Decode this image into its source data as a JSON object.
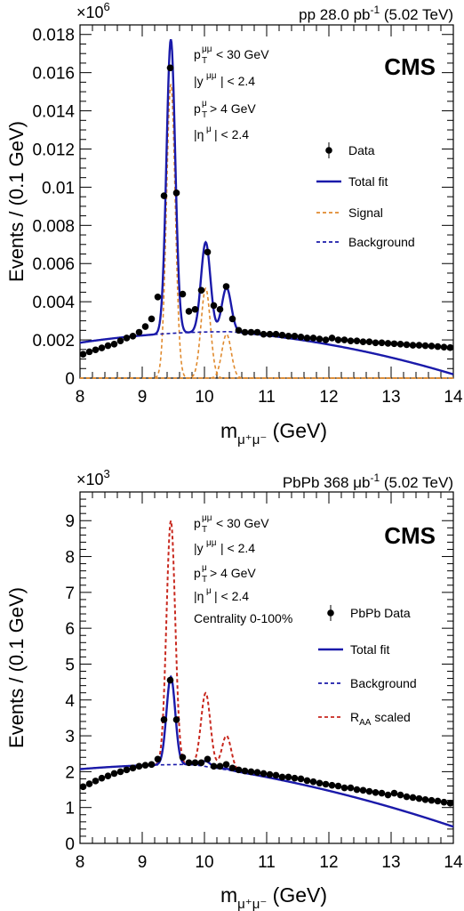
{
  "chart_data": [
    {
      "type": "scatter",
      "exponent_label": "×10",
      "exponent_power": "6",
      "multiplier": 1000000,
      "header_prefix": "pp 28.0 pb",
      "header_power": "-1",
      "header_suffix": "(5.02 TeV)",
      "cms_label": "CMS",
      "ylabel": "Events / (0.1 GeV)",
      "xlabel_main": "m",
      "xlabel_sub": "μ⁺μ⁻",
      "xlabel_unit": "(GeV)",
      "xlim": [
        8,
        14
      ],
      "ylim": [
        0,
        0.0185
      ],
      "x_ticks": [
        "8",
        "9",
        "10",
        "11",
        "12",
        "13",
        "14"
      ],
      "y_ticks": [
        {
          "v": 0,
          "label": "0"
        },
        {
          "v": 0.002,
          "label": "0.002"
        },
        {
          "v": 0.004,
          "label": "0.004"
        },
        {
          "v": 0.006,
          "label": "0.006"
        },
        {
          "v": 0.008,
          "label": "0.008"
        },
        {
          "v": 0.01,
          "label": "0.01"
        },
        {
          "v": 0.012,
          "label": "0.012"
        },
        {
          "v": 0.014,
          "label": "0.014"
        },
        {
          "v": 0.016,
          "label": "0.016"
        },
        {
          "v": 0.018,
          "label": "0.018"
        }
      ],
      "y_minor": 0.0005,
      "cuts": [
        {
          "sym": "p",
          "sup": "μμ",
          "sub": "T",
          "rest": " < 30 GeV"
        },
        {
          "sym": "|y",
          "sup": "μμ",
          "sub": "",
          "rest": "| < 2.4"
        },
        {
          "sym": "p",
          "sup": "μ",
          "sub": "T",
          "rest": " > 4 GeV"
        },
        {
          "sym": "|η",
          "sup": "μ",
          "sub": "",
          "rest": "| < 2.4"
        }
      ],
      "legend": [
        {
          "label": "Data",
          "style": "marker",
          "color": "#000000"
        },
        {
          "label": "Total fit",
          "style": "solid",
          "color": "#1a1aaa"
        },
        {
          "label": "Signal",
          "style": "dash",
          "color": "#e08a2e"
        },
        {
          "label": "Background",
          "style": "dash",
          "color": "#1a1aaa"
        }
      ],
      "background": {
        "a": 0.00243,
        "c": 10.4,
        "k": 0.0001,
        "r": 0.00026
      },
      "peaks": [
        {
          "mass": 9.46,
          "amp": 0.0154,
          "sigma": 0.07
        },
        {
          "mass": 10.02,
          "amp": 0.0047,
          "sigma": 0.075
        },
        {
          "mass": 10.355,
          "amp": 0.0023,
          "sigma": 0.075
        }
      ],
      "data_points": [
        [
          8.05,
          0.00125
        ],
        [
          8.15,
          0.00138
        ],
        [
          8.25,
          0.00148
        ],
        [
          8.35,
          0.00158
        ],
        [
          8.45,
          0.0017
        ],
        [
          8.55,
          0.00178
        ],
        [
          8.65,
          0.00195
        ],
        [
          8.75,
          0.0021
        ],
        [
          8.85,
          0.0022
        ],
        [
          8.95,
          0.0024
        ],
        [
          9.05,
          0.0027
        ],
        [
          9.15,
          0.0031
        ],
        [
          9.25,
          0.00425
        ],
        [
          9.35,
          0.00955
        ],
        [
          9.45,
          0.01625
        ],
        [
          9.55,
          0.0097
        ],
        [
          9.65,
          0.0044
        ],
        [
          9.75,
          0.0035
        ],
        [
          9.85,
          0.0036
        ],
        [
          9.95,
          0.0046
        ],
        [
          10.05,
          0.0066
        ],
        [
          10.15,
          0.0038
        ],
        [
          10.25,
          0.0036
        ],
        [
          10.35,
          0.0048
        ],
        [
          10.45,
          0.0031
        ],
        [
          10.55,
          0.0025
        ],
        [
          10.65,
          0.0024
        ],
        [
          10.75,
          0.0024
        ],
        [
          10.85,
          0.0024
        ],
        [
          10.95,
          0.0023
        ],
        [
          11.05,
          0.0023
        ],
        [
          11.15,
          0.0023
        ],
        [
          11.25,
          0.00225
        ],
        [
          11.35,
          0.0022
        ],
        [
          11.45,
          0.0022
        ],
        [
          11.55,
          0.00215
        ],
        [
          11.65,
          0.0021
        ],
        [
          11.75,
          0.0021
        ],
        [
          11.85,
          0.00205
        ],
        [
          11.95,
          0.002
        ],
        [
          12.05,
          0.0021
        ],
        [
          12.15,
          0.002
        ],
        [
          12.25,
          0.002
        ],
        [
          12.35,
          0.00195
        ],
        [
          12.45,
          0.00195
        ],
        [
          12.55,
          0.0019
        ],
        [
          12.65,
          0.0019
        ],
        [
          12.75,
          0.00185
        ],
        [
          12.85,
          0.00185
        ],
        [
          12.95,
          0.00182
        ],
        [
          13.05,
          0.0018
        ],
        [
          13.15,
          0.00178
        ],
        [
          13.25,
          0.00175
        ],
        [
          13.35,
          0.00172
        ],
        [
          13.45,
          0.00172
        ],
        [
          13.55,
          0.0017
        ],
        [
          13.65,
          0.00168
        ],
        [
          13.75,
          0.00165
        ],
        [
          13.85,
          0.00162
        ],
        [
          13.95,
          0.0016
        ]
      ]
    },
    {
      "type": "scatter",
      "exponent_label": "×10",
      "exponent_power": "3",
      "multiplier": 1000,
      "header_prefix": "PbPb 368 μb",
      "header_power": "-1",
      "header_suffix": "(5.02 TeV)",
      "cms_label": "CMS",
      "ylabel": "Events / (0.1 GeV)",
      "xlabel_main": "m",
      "xlabel_sub": "μ⁺μ⁻",
      "xlabel_unit": "(GeV)",
      "xlim": [
        8,
        14
      ],
      "ylim": [
        0,
        9.8
      ],
      "x_ticks": [
        "8",
        "9",
        "10",
        "11",
        "12",
        "13",
        "14"
      ],
      "y_ticks": [
        {
          "v": 0,
          "label": "0"
        },
        {
          "v": 1,
          "label": "1"
        },
        {
          "v": 2,
          "label": "2"
        },
        {
          "v": 3,
          "label": "3"
        },
        {
          "v": 4,
          "label": "4"
        },
        {
          "v": 5,
          "label": "5"
        },
        {
          "v": 6,
          "label": "6"
        },
        {
          "v": 7,
          "label": "7"
        },
        {
          "v": 8,
          "label": "8"
        },
        {
          "v": 9,
          "label": "9"
        }
      ],
      "y_minor": 0.2,
      "cuts": [
        {
          "sym": "p",
          "sup": "μμ",
          "sub": "T",
          "rest": " < 30 GeV"
        },
        {
          "sym": "|y",
          "sup": "μμ",
          "sub": "",
          "rest": "| < 2.4"
        },
        {
          "sym": "p",
          "sup": "μ",
          "sub": "T",
          "rest": " > 4 GeV"
        },
        {
          "sym": "|η",
          "sup": "μ",
          "sub": "",
          "rest": "| < 2.4"
        },
        {
          "sym": "Centrality 0-100%",
          "sup": "",
          "sub": "",
          "rest": ""
        }
      ],
      "legend": [
        {
          "label": "PbPb Data",
          "style": "marker",
          "color": "#000000"
        },
        {
          "label": "Total fit",
          "style": "solid",
          "color": "#1a1aaa"
        },
        {
          "label": "Background",
          "style": "dash",
          "color": "#1a1aaa"
        },
        {
          "label": "R",
          "label_sub": "AA",
          "label_rest": " scaled",
          "style": "dash",
          "color": "#c8281e"
        }
      ],
      "background": {
        "a": 2.2,
        "c": 9.8,
        "k": 0.04,
        "r": 0.245
      },
      "peaks": [
        {
          "mass": 9.46,
          "amp": 2.45,
          "sigma": 0.07
        },
        {
          "mass": 10.02,
          "amp": 0.15,
          "sigma": 0.075
        },
        {
          "mass": 10.355,
          "amp": 0.03,
          "sigma": 0.075
        }
      ],
      "raa_peaks": [
        {
          "mass": 9.46,
          "amp": 6.8,
          "sigma": 0.07
        },
        {
          "mass": 10.02,
          "amp": 2.05,
          "sigma": 0.075
        },
        {
          "mass": 10.355,
          "amp": 0.95,
          "sigma": 0.075
        }
      ],
      "data_points": [
        [
          8.05,
          1.58
        ],
        [
          8.15,
          1.66
        ],
        [
          8.25,
          1.74
        ],
        [
          8.35,
          1.82
        ],
        [
          8.45,
          1.88
        ],
        [
          8.55,
          1.95
        ],
        [
          8.65,
          2.0
        ],
        [
          8.75,
          2.05
        ],
        [
          8.85,
          2.1
        ],
        [
          8.95,
          2.15
        ],
        [
          9.05,
          2.18
        ],
        [
          9.15,
          2.2
        ],
        [
          9.25,
          2.35
        ],
        [
          9.35,
          3.45
        ],
        [
          9.45,
          4.55
        ],
        [
          9.55,
          3.45
        ],
        [
          9.65,
          2.4
        ],
        [
          9.75,
          2.25
        ],
        [
          9.85,
          2.25
        ],
        [
          9.95,
          2.25
        ],
        [
          10.05,
          2.35
        ],
        [
          10.15,
          2.15
        ],
        [
          10.25,
          2.15
        ],
        [
          10.35,
          2.2
        ],
        [
          10.45,
          2.1
        ],
        [
          10.55,
          2.05
        ],
        [
          10.65,
          2.02
        ],
        [
          10.75,
          2.0
        ],
        [
          10.85,
          1.98
        ],
        [
          10.95,
          1.95
        ],
        [
          11.05,
          1.92
        ],
        [
          11.15,
          1.9
        ],
        [
          11.25,
          1.85
        ],
        [
          11.35,
          1.85
        ],
        [
          11.45,
          1.82
        ],
        [
          11.55,
          1.8
        ],
        [
          11.65,
          1.75
        ],
        [
          11.75,
          1.72
        ],
        [
          11.85,
          1.68
        ],
        [
          11.95,
          1.65
        ],
        [
          12.05,
          1.62
        ],
        [
          12.15,
          1.6
        ],
        [
          12.25,
          1.55
        ],
        [
          12.35,
          1.55
        ],
        [
          12.45,
          1.5
        ],
        [
          12.55,
          1.48
        ],
        [
          12.65,
          1.45
        ],
        [
          12.75,
          1.42
        ],
        [
          12.85,
          1.4
        ],
        [
          12.95,
          1.35
        ],
        [
          13.05,
          1.4
        ],
        [
          13.15,
          1.35
        ],
        [
          13.25,
          1.3
        ],
        [
          13.35,
          1.28
        ],
        [
          13.45,
          1.25
        ],
        [
          13.55,
          1.22
        ],
        [
          13.65,
          1.2
        ],
        [
          13.75,
          1.18
        ],
        [
          13.85,
          1.15
        ],
        [
          13.95,
          1.12
        ]
      ]
    }
  ]
}
